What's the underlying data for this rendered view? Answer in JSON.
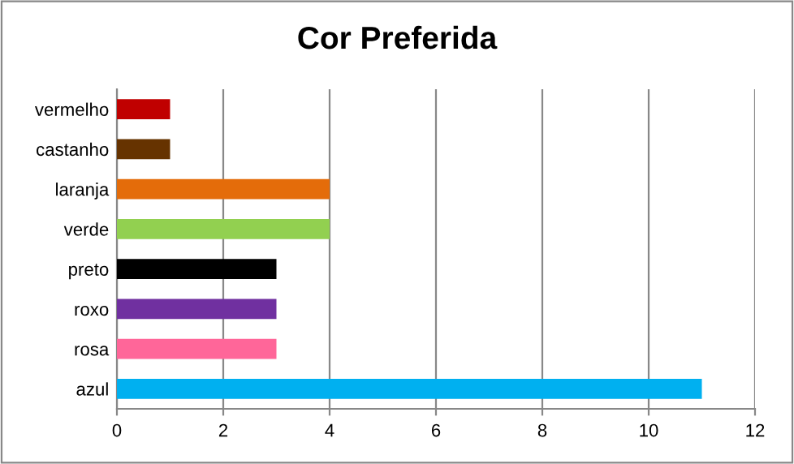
{
  "chart_data": {
    "type": "bar",
    "orientation": "horizontal",
    "title": "Cor Preferida",
    "categories": [
      "vermelho",
      "castanho",
      "laranja",
      "verde",
      "preto",
      "roxo",
      "rosa",
      "azul"
    ],
    "values": [
      1,
      1,
      4,
      4,
      3,
      3,
      3,
      11
    ],
    "colors": [
      "#c00000",
      "#663300",
      "#e46c0a",
      "#92d050",
      "#000000",
      "#7030a0",
      "#ff6699",
      "#00b0f0"
    ],
    "xlim": [
      0,
      12
    ],
    "xticks": [
      0,
      2,
      4,
      6,
      8,
      10,
      12
    ],
    "grid": "x",
    "legend": false
  }
}
